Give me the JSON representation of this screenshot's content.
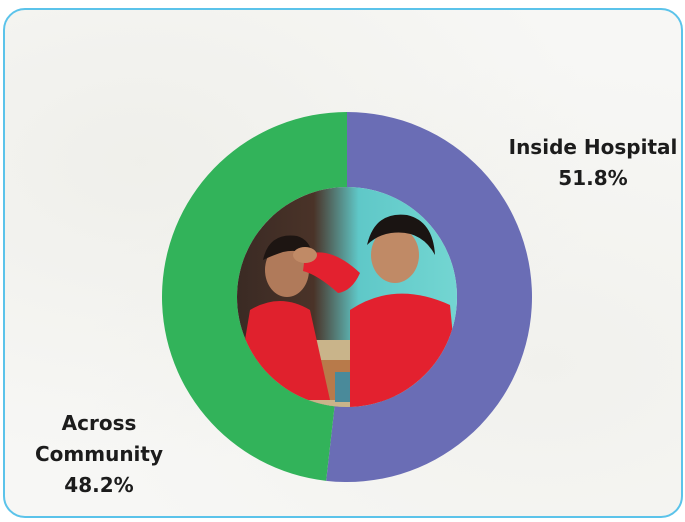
{
  "chart_data": {
    "type": "pie",
    "donut": true,
    "categories": [
      "Inside Hospital",
      "Across Community"
    ],
    "values": [
      51.8,
      48.2
    ],
    "labels": [
      {
        "name": "Inside Hospital",
        "value_text": "51.8%"
      },
      {
        "name": "Across Community",
        "value_text": "48.2%"
      }
    ],
    "colors": [
      "#6a6db5",
      "#32b35a"
    ],
    "center": "photo of a health worker attending to a patient"
  },
  "colors": {
    "border": "#5bc3ea",
    "background": "#f7f7f5"
  }
}
